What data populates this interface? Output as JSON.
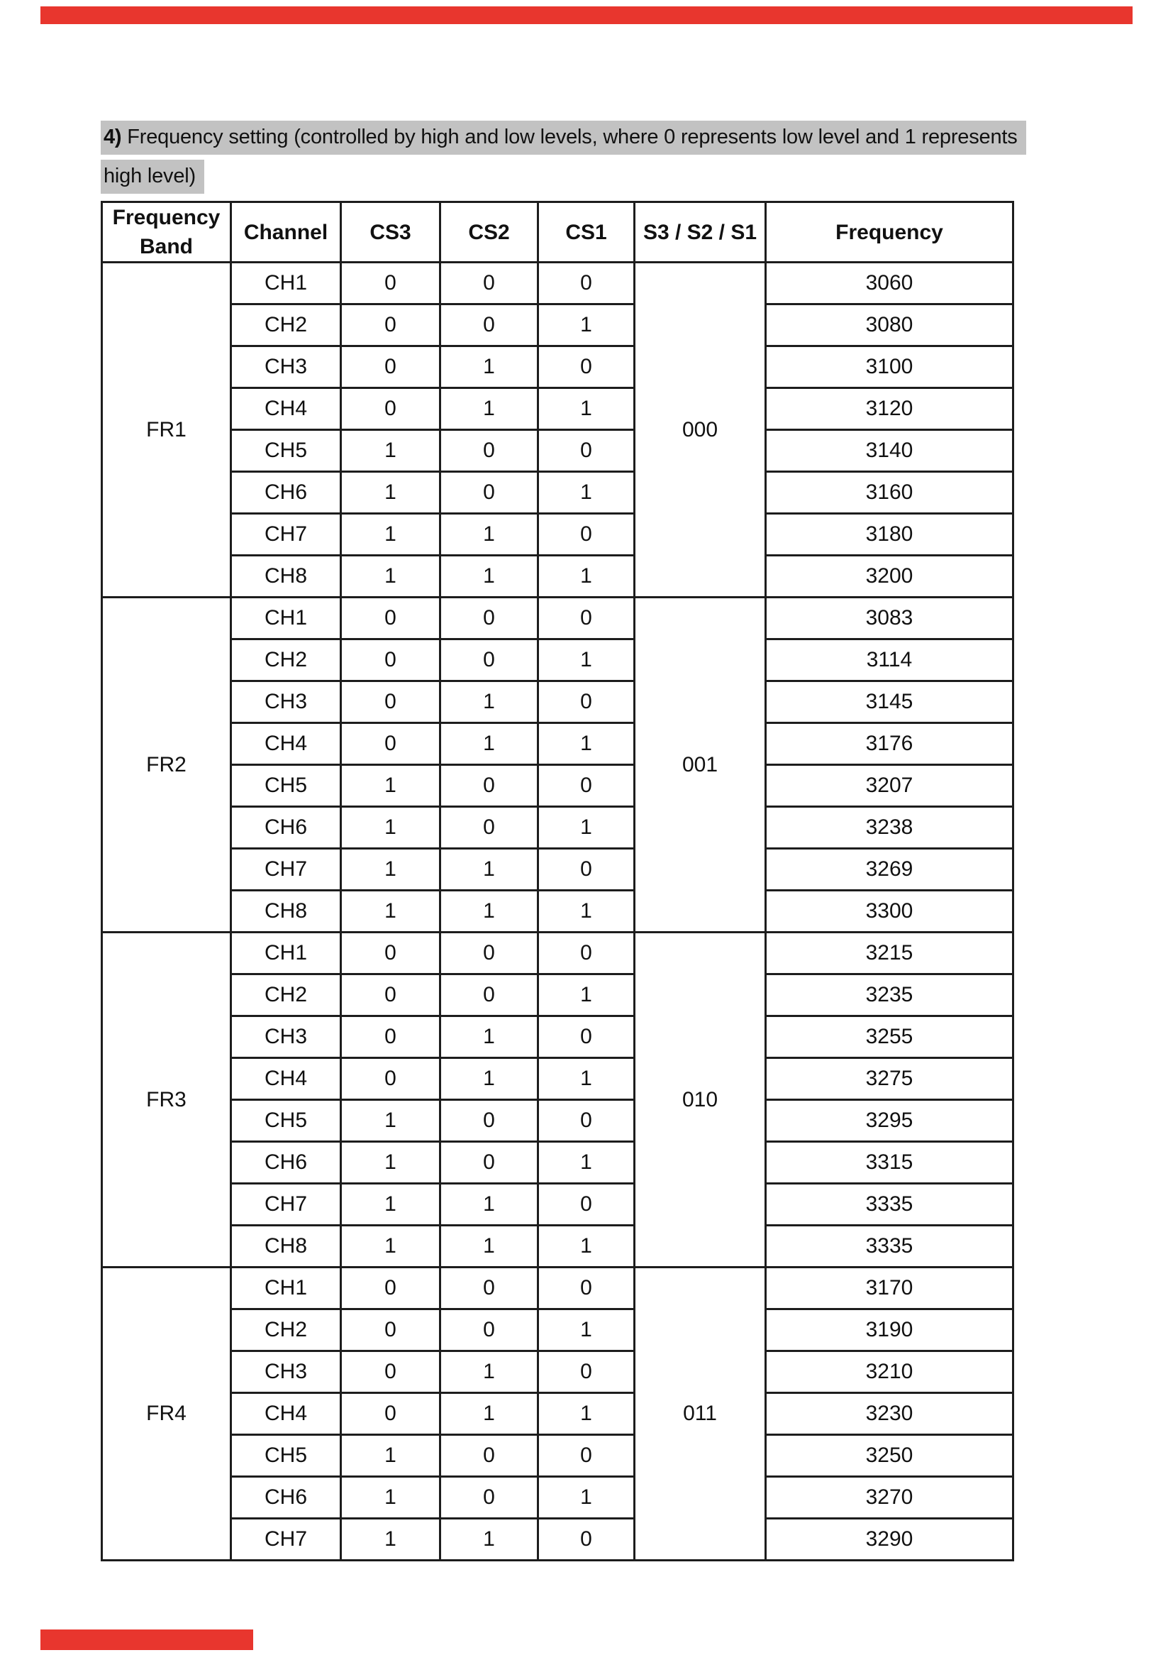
{
  "heading": {
    "number": "4)",
    "line1_rest": " Frequency setting (controlled by high and low levels, where 0 represents low level and 1 represents",
    "line2": "high level)"
  },
  "colors": {
    "highlight": "#c2c2c2",
    "redaction": "#e8362e",
    "table_line": "#1d1d1d"
  },
  "table": {
    "headers": [
      "Frequency Band",
      "Channel",
      "CS3",
      "CS2",
      "CS1",
      "S3 / S2 / S1",
      "Frequency"
    ],
    "bands": [
      {
        "band": "FR1",
        "selector": "000",
        "rows": [
          {
            "channel": "CH1",
            "cs3": "0",
            "cs2": "0",
            "cs1": "0",
            "frequency": "3060"
          },
          {
            "channel": "CH2",
            "cs3": "0",
            "cs2": "0",
            "cs1": "1",
            "frequency": "3080"
          },
          {
            "channel": "CH3",
            "cs3": "0",
            "cs2": "1",
            "cs1": "0",
            "frequency": "3100"
          },
          {
            "channel": "CH4",
            "cs3": "0",
            "cs2": "1",
            "cs1": "1",
            "frequency": "3120"
          },
          {
            "channel": "CH5",
            "cs3": "1",
            "cs2": "0",
            "cs1": "0",
            "frequency": "3140"
          },
          {
            "channel": "CH6",
            "cs3": "1",
            "cs2": "0",
            "cs1": "1",
            "frequency": "3160"
          },
          {
            "channel": "CH7",
            "cs3": "1",
            "cs2": "1",
            "cs1": "0",
            "frequency": "3180"
          },
          {
            "channel": "CH8",
            "cs3": "1",
            "cs2": "1",
            "cs1": "1",
            "frequency": "3200"
          }
        ]
      },
      {
        "band": "FR2",
        "selector": "001",
        "rows": [
          {
            "channel": "CH1",
            "cs3": "0",
            "cs2": "0",
            "cs1": "0",
            "frequency": "3083"
          },
          {
            "channel": "CH2",
            "cs3": "0",
            "cs2": "0",
            "cs1": "1",
            "frequency": "3114"
          },
          {
            "channel": "CH3",
            "cs3": "0",
            "cs2": "1",
            "cs1": "0",
            "frequency": "3145"
          },
          {
            "channel": "CH4",
            "cs3": "0",
            "cs2": "1",
            "cs1": "1",
            "frequency": "3176"
          },
          {
            "channel": "CH5",
            "cs3": "1",
            "cs2": "0",
            "cs1": "0",
            "frequency": "3207"
          },
          {
            "channel": "CH6",
            "cs3": "1",
            "cs2": "0",
            "cs1": "1",
            "frequency": "3238"
          },
          {
            "channel": "CH7",
            "cs3": "1",
            "cs2": "1",
            "cs1": "0",
            "frequency": "3269"
          },
          {
            "channel": "CH8",
            "cs3": "1",
            "cs2": "1",
            "cs1": "1",
            "frequency": "3300"
          }
        ]
      },
      {
        "band": "FR3",
        "selector": "010",
        "rows": [
          {
            "channel": "CH1",
            "cs3": "0",
            "cs2": "0",
            "cs1": "0",
            "frequency": "3215"
          },
          {
            "channel": "CH2",
            "cs3": "0",
            "cs2": "0",
            "cs1": "1",
            "frequency": "3235"
          },
          {
            "channel": "CH3",
            "cs3": "0",
            "cs2": "1",
            "cs1": "0",
            "frequency": "3255"
          },
          {
            "channel": "CH4",
            "cs3": "0",
            "cs2": "1",
            "cs1": "1",
            "frequency": "3275"
          },
          {
            "channel": "CH5",
            "cs3": "1",
            "cs2": "0",
            "cs1": "0",
            "frequency": "3295"
          },
          {
            "channel": "CH6",
            "cs3": "1",
            "cs2": "0",
            "cs1": "1",
            "frequency": "3315"
          },
          {
            "channel": "CH7",
            "cs3": "1",
            "cs2": "1",
            "cs1": "0",
            "frequency": "3335"
          },
          {
            "channel": "CH8",
            "cs3": "1",
            "cs2": "1",
            "cs1": "1",
            "frequency": "3335"
          }
        ]
      },
      {
        "band": "FR4",
        "selector": "011",
        "rows": [
          {
            "channel": "CH1",
            "cs3": "0",
            "cs2": "0",
            "cs1": "0",
            "frequency": "3170"
          },
          {
            "channel": "CH2",
            "cs3": "0",
            "cs2": "0",
            "cs1": "1",
            "frequency": "3190"
          },
          {
            "channel": "CH3",
            "cs3": "0",
            "cs2": "1",
            "cs1": "0",
            "frequency": "3210"
          },
          {
            "channel": "CH4",
            "cs3": "0",
            "cs2": "1",
            "cs1": "1",
            "frequency": "3230"
          },
          {
            "channel": "CH5",
            "cs3": "1",
            "cs2": "0",
            "cs1": "0",
            "frequency": "3250"
          },
          {
            "channel": "CH6",
            "cs3": "1",
            "cs2": "0",
            "cs1": "1",
            "frequency": "3270"
          },
          {
            "channel": "CH7",
            "cs3": "1",
            "cs2": "1",
            "cs1": "0",
            "frequency": "3290"
          }
        ]
      }
    ]
  }
}
